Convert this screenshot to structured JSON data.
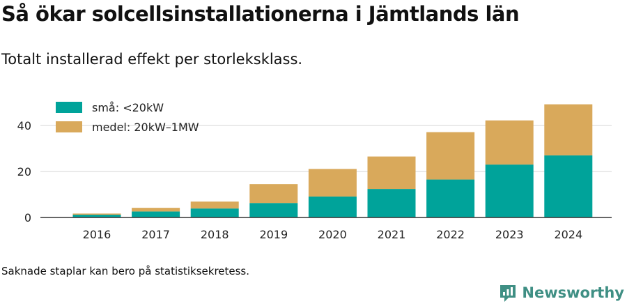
{
  "title": "Så ökar solcellsinstallationerna i Jämtlands län",
  "subtitle": "Totalt installerad effekt per storleksklass.",
  "footnote": "Saknade staplar kan bero på statistiksekretess.",
  "brand": {
    "name": "Newsworthy",
    "icon": "newsworthy-logo-icon",
    "color": "#3f8f84"
  },
  "chart_data": {
    "type": "bar",
    "stacked": true,
    "categories": [
      "2016",
      "2017",
      "2018",
      "2019",
      "2020",
      "2021",
      "2022",
      "2023",
      "2024"
    ],
    "series": [
      {
        "name": "små: <20kW",
        "color": "#00a39a",
        "values": [
          1.2,
          2.6,
          3.9,
          6.3,
          9.1,
          12.4,
          16.5,
          23.0,
          27.0
        ]
      },
      {
        "name": "medel: 20kW–1MW",
        "color": "#d9a95b",
        "values": [
          0.5,
          1.6,
          3.0,
          8.2,
          12.0,
          14.1,
          20.6,
          19.2,
          22.2
        ]
      }
    ],
    "yticks": [
      0,
      20,
      40
    ],
    "ylim": [
      0,
      53
    ],
    "xlabel": "",
    "ylabel": "",
    "grid": true,
    "legend": "top-left"
  }
}
